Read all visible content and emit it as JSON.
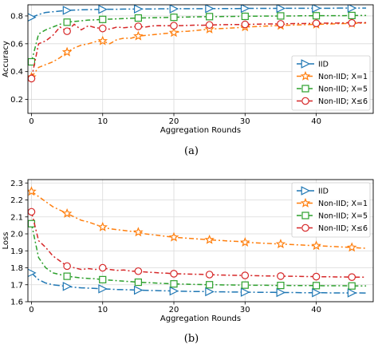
{
  "colors": {
    "iid": "#1f77b4",
    "x1": "#ff7f0e",
    "x5": "#2ca02c",
    "x6": "#d62728"
  },
  "chart_data": [
    {
      "type": "line",
      "caption": "(a)",
      "xlabel": "Aggregation Rounds",
      "ylabel": "Accuracy",
      "xlim": [
        -0.5,
        48
      ],
      "ylim": [
        0.1,
        0.88
      ],
      "xticks": [
        0,
        10,
        20,
        30,
        40
      ],
      "yticks": [
        0.2,
        0.4,
        0.6,
        0.8
      ],
      "ytick_labels": [
        "0.2",
        "0.4",
        "0.6",
        "0.8"
      ],
      "grid": true,
      "legend_position": "lower-right",
      "series": [
        {
          "name": "IID",
          "color_key": "iid",
          "marker": "triangle-right",
          "x": [
            0,
            1,
            2,
            3,
            4,
            5,
            6,
            7,
            8,
            9,
            10,
            11,
            12,
            13,
            14,
            15,
            16,
            17,
            18,
            19,
            20,
            21,
            22,
            23,
            24,
            25,
            26,
            27,
            28,
            29,
            30,
            31,
            32,
            33,
            34,
            35,
            36,
            37,
            38,
            39,
            40,
            41,
            42,
            43,
            44,
            45,
            46,
            47
          ],
          "y": [
            0.79,
            0.81,
            0.825,
            0.83,
            0.835,
            0.84,
            0.842,
            0.844,
            0.845,
            0.846,
            0.847,
            0.848,
            0.848,
            0.849,
            0.849,
            0.85,
            0.85,
            0.85,
            0.851,
            0.851,
            0.851,
            0.852,
            0.852,
            0.852,
            0.852,
            0.853,
            0.853,
            0.853,
            0.853,
            0.853,
            0.854,
            0.854,
            0.854,
            0.854,
            0.854,
            0.854,
            0.855,
            0.855,
            0.855,
            0.855,
            0.855,
            0.855,
            0.855,
            0.856,
            0.856,
            0.856,
            0.856,
            0.856
          ],
          "marker_x": [
            0,
            5,
            10,
            15,
            20,
            25,
            30,
            35,
            40,
            45
          ]
        },
        {
          "name": "Non-IID; X=1",
          "color_key": "x1",
          "marker": "star",
          "x": [
            0,
            1,
            2,
            3,
            4,
            5,
            6,
            7,
            8,
            9,
            10,
            11,
            12,
            13,
            14,
            15,
            16,
            17,
            18,
            19,
            20,
            21,
            22,
            23,
            24,
            25,
            26,
            27,
            28,
            29,
            30,
            31,
            32,
            33,
            34,
            35,
            36,
            37,
            38,
            39,
            40,
            41,
            42,
            43,
            44,
            45,
            46,
            47
          ],
          "y": [
            0.36,
            0.43,
            0.45,
            0.47,
            0.5,
            0.54,
            0.57,
            0.59,
            0.6,
            0.615,
            0.62,
            0.6,
            0.63,
            0.64,
            0.64,
            0.655,
            0.66,
            0.665,
            0.67,
            0.675,
            0.68,
            0.688,
            0.69,
            0.695,
            0.7,
            0.705,
            0.708,
            0.71,
            0.713,
            0.716,
            0.72,
            0.722,
            0.725,
            0.727,
            0.729,
            0.731,
            0.733,
            0.735,
            0.736,
            0.738,
            0.739,
            0.741,
            0.742,
            0.744,
            0.745,
            0.746,
            0.748,
            0.749
          ],
          "marker_x": [
            0,
            5,
            10,
            15,
            20,
            25,
            30,
            35,
            40,
            45
          ]
        },
        {
          "name": "Non-IID; X=5",
          "color_key": "x5",
          "marker": "square",
          "x": [
            0,
            1,
            2,
            3,
            4,
            5,
            6,
            7,
            8,
            9,
            10,
            11,
            12,
            13,
            14,
            15,
            16,
            17,
            18,
            19,
            20,
            21,
            22,
            23,
            24,
            25,
            26,
            27,
            28,
            29,
            30,
            31,
            32,
            33,
            34,
            35,
            36,
            37,
            38,
            39,
            40,
            41,
            42,
            43,
            44,
            45,
            46,
            47
          ],
          "y": [
            0.47,
            0.67,
            0.7,
            0.72,
            0.74,
            0.755,
            0.76,
            0.765,
            0.77,
            0.772,
            0.775,
            0.777,
            0.779,
            0.781,
            0.783,
            0.785,
            0.786,
            0.787,
            0.788,
            0.789,
            0.79,
            0.791,
            0.792,
            0.793,
            0.794,
            0.795,
            0.795,
            0.796,
            0.796,
            0.797,
            0.797,
            0.798,
            0.798,
            0.799,
            0.799,
            0.8,
            0.8,
            0.8,
            0.801,
            0.801,
            0.801,
            0.802,
            0.802,
            0.802,
            0.802,
            0.803,
            0.803,
            0.803
          ],
          "marker_x": [
            0,
            5,
            10,
            15,
            20,
            25,
            30,
            35,
            40,
            45
          ]
        },
        {
          "name": "Non-IID; X≤6",
          "color_key": "x6",
          "marker": "circle",
          "x": [
            0,
            1,
            2,
            3,
            4,
            5,
            6,
            7,
            8,
            9,
            10,
            11,
            12,
            13,
            14,
            15,
            16,
            17,
            18,
            19,
            20,
            21,
            22,
            23,
            24,
            25,
            26,
            27,
            28,
            29,
            30,
            31,
            32,
            33,
            34,
            35,
            36,
            37,
            38,
            39,
            40,
            41,
            42,
            43,
            44,
            45,
            46,
            47
          ],
          "y": [
            0.35,
            0.6,
            0.62,
            0.66,
            0.72,
            0.69,
            0.74,
            0.7,
            0.73,
            0.715,
            0.71,
            0.705,
            0.72,
            0.715,
            0.72,
            0.725,
            0.72,
            0.728,
            0.73,
            0.729,
            0.73,
            0.73,
            0.732,
            0.734,
            0.733,
            0.735,
            0.736,
            0.737,
            0.738,
            0.738,
            0.739,
            0.74,
            0.741,
            0.742,
            0.742,
            0.743,
            0.744,
            0.745,
            0.745,
            0.746,
            0.747,
            0.748,
            0.748,
            0.749,
            0.75,
            0.75,
            0.751,
            0.752
          ],
          "marker_x": [
            0,
            5,
            10,
            15,
            20,
            25,
            30,
            35,
            40,
            45
          ]
        }
      ]
    },
    {
      "type": "line",
      "caption": "(b)",
      "xlabel": "Aggregation Rounds",
      "ylabel": "Loss",
      "xlim": [
        -0.5,
        48
      ],
      "ylim": [
        1.6,
        2.32
      ],
      "xticks": [
        0,
        10,
        20,
        30,
        40
      ],
      "yticks": [
        1.6,
        1.7,
        1.8,
        1.9,
        2.0,
        2.1,
        2.2,
        2.3
      ],
      "ytick_labels": [
        "1.6",
        "1.7",
        "1.8",
        "1.9",
        "2.0",
        "2.1",
        "2.2",
        "2.3"
      ],
      "grid": true,
      "legend_position": "upper-right",
      "series": [
        {
          "name": "IID",
          "color_key": "iid",
          "marker": "triangle-right",
          "x": [
            0,
            1,
            2,
            3,
            4,
            5,
            6,
            7,
            8,
            9,
            10,
            11,
            12,
            13,
            14,
            15,
            16,
            17,
            18,
            19,
            20,
            21,
            22,
            23,
            24,
            25,
            26,
            27,
            28,
            29,
            30,
            31,
            32,
            33,
            34,
            35,
            36,
            37,
            38,
            39,
            40,
            41,
            42,
            43,
            44,
            45,
            46,
            47
          ],
          "y": [
            1.77,
            1.73,
            1.71,
            1.7,
            1.695,
            1.69,
            1.685,
            1.682,
            1.68,
            1.678,
            1.676,
            1.674,
            1.672,
            1.671,
            1.67,
            1.668,
            1.667,
            1.666,
            1.665,
            1.664,
            1.663,
            1.662,
            1.661,
            1.66,
            1.66,
            1.659,
            1.658,
            1.658,
            1.657,
            1.657,
            1.656,
            1.656,
            1.655,
            1.655,
            1.655,
            1.654,
            1.654,
            1.654,
            1.653,
            1.653,
            1.653,
            1.653,
            1.652,
            1.652,
            1.652,
            1.652,
            1.652,
            1.651
          ],
          "marker_x": [
            0,
            5,
            10,
            15,
            20,
            25,
            30,
            35,
            40,
            45
          ]
        },
        {
          "name": "Non-IID; X=1",
          "color_key": "x1",
          "marker": "star",
          "x": [
            0,
            1,
            2,
            3,
            4,
            5,
            6,
            7,
            8,
            9,
            10,
            11,
            12,
            13,
            14,
            15,
            16,
            17,
            18,
            19,
            20,
            21,
            22,
            23,
            24,
            25,
            26,
            27,
            28,
            29,
            30,
            31,
            32,
            33,
            34,
            35,
            36,
            37,
            38,
            39,
            40,
            41,
            42,
            43,
            44,
            45,
            46,
            47
          ],
          "y": [
            2.25,
            2.22,
            2.19,
            2.16,
            2.14,
            2.12,
            2.1,
            2.08,
            2.07,
            2.055,
            2.04,
            2.03,
            2.025,
            2.02,
            2.015,
            2.01,
            2.0,
            1.995,
            1.99,
            1.985,
            1.98,
            1.977,
            1.974,
            1.971,
            1.968,
            1.965,
            1.962,
            1.96,
            1.957,
            1.955,
            1.95,
            1.948,
            1.946,
            1.944,
            1.942,
            1.94,
            1.938,
            1.936,
            1.934,
            1.932,
            1.93,
            1.928,
            1.926,
            1.924,
            1.922,
            1.92,
            1.917,
            1.915
          ],
          "marker_x": [
            0,
            5,
            10,
            15,
            20,
            25,
            30,
            35,
            40,
            45
          ]
        },
        {
          "name": "Non-IID; X=5",
          "color_key": "x5",
          "marker": "square",
          "x": [
            0,
            1,
            2,
            3,
            4,
            5,
            6,
            7,
            8,
            9,
            10,
            11,
            12,
            13,
            14,
            15,
            16,
            17,
            18,
            19,
            20,
            21,
            22,
            23,
            24,
            25,
            26,
            27,
            28,
            29,
            30,
            31,
            32,
            33,
            34,
            35,
            36,
            37,
            38,
            39,
            40,
            41,
            42,
            43,
            44,
            45,
            46,
            47
          ],
          "y": [
            2.06,
            1.86,
            1.8,
            1.77,
            1.76,
            1.75,
            1.745,
            1.74,
            1.737,
            1.735,
            1.73,
            1.727,
            1.724,
            1.721,
            1.718,
            1.715,
            1.713,
            1.711,
            1.709,
            1.707,
            1.705,
            1.704,
            1.703,
            1.702,
            1.701,
            1.7,
            1.7,
            1.699,
            1.699,
            1.698,
            1.698,
            1.697,
            1.697,
            1.697,
            1.696,
            1.696,
            1.696,
            1.695,
            1.695,
            1.695,
            1.695,
            1.694,
            1.694,
            1.694,
            1.694,
            1.693,
            1.693,
            1.693
          ],
          "marker_x": [
            0,
            5,
            10,
            15,
            20,
            25,
            30,
            35,
            40,
            45
          ]
        },
        {
          "name": "Non-IID; X≤6",
          "color_key": "x6",
          "marker": "circle",
          "x": [
            0,
            1,
            2,
            3,
            4,
            5,
            6,
            7,
            8,
            9,
            10,
            11,
            12,
            13,
            14,
            15,
            16,
            17,
            18,
            19,
            20,
            21,
            22,
            23,
            24,
            25,
            26,
            27,
            28,
            29,
            30,
            31,
            32,
            33,
            34,
            35,
            36,
            37,
            38,
            39,
            40,
            41,
            42,
            43,
            44,
            45,
            46,
            47
          ],
          "y": [
            2.13,
            1.96,
            1.92,
            1.87,
            1.84,
            1.81,
            1.8,
            1.79,
            1.795,
            1.79,
            1.8,
            1.79,
            1.785,
            1.787,
            1.78,
            1.78,
            1.775,
            1.773,
            1.77,
            1.768,
            1.765,
            1.764,
            1.763,
            1.762,
            1.761,
            1.76,
            1.758,
            1.757,
            1.756,
            1.755,
            1.755,
            1.754,
            1.753,
            1.752,
            1.752,
            1.751,
            1.75,
            1.75,
            1.749,
            1.748,
            1.748,
            1.747,
            1.747,
            1.746,
            1.746,
            1.745,
            1.745,
            1.745
          ],
          "marker_x": [
            0,
            5,
            10,
            15,
            20,
            25,
            30,
            35,
            40,
            45
          ]
        }
      ]
    }
  ]
}
